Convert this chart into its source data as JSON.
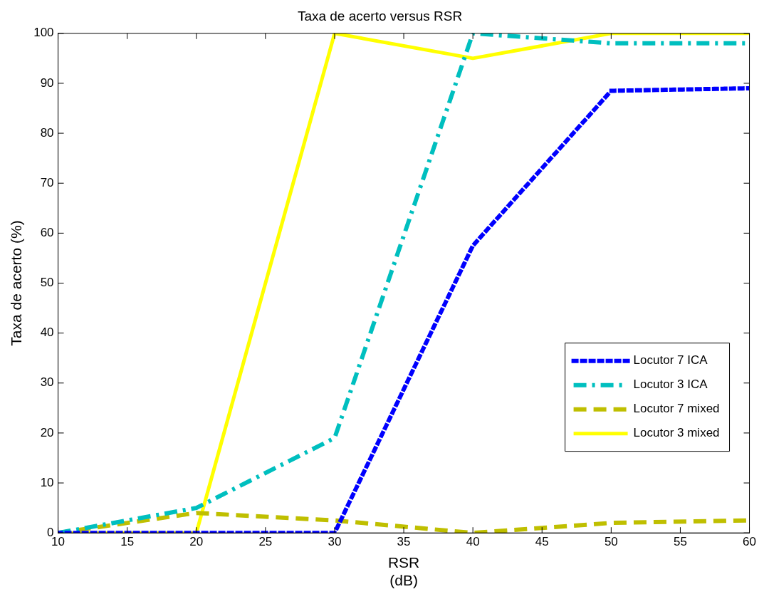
{
  "chart_data": {
    "type": "line",
    "title": "Taxa de acerto versus RSR",
    "xlabel": "RSR\n(dB)",
    "ylabel": "Taxa de acerto (%)",
    "x": [
      10,
      20,
      30,
      40,
      50,
      60
    ],
    "series": [
      {
        "name": "Locutor 7 ICA",
        "color": "#0000ff",
        "line_style": "dotted",
        "values": [
          0,
          0,
          0,
          57.5,
          88.5,
          89
        ]
      },
      {
        "name": "Locutor 3 ICA",
        "color": "#00bfbf",
        "line_style": "dashdot",
        "values": [
          0,
          5,
          19,
          100,
          98,
          98
        ]
      },
      {
        "name": "Locutor 7 mixed",
        "color": "#bfbf00",
        "line_style": "dashed",
        "values": [
          0,
          4,
          2.5,
          0,
          2,
          2.5
        ]
      },
      {
        "name": "Locutor 3 mixed",
        "color": "#ffff00",
        "line_style": "solid",
        "values": [
          0,
          0,
          100,
          95,
          100,
          100
        ]
      }
    ],
    "xlim": [
      10,
      60
    ],
    "xticks": [
      10,
      15,
      20,
      25,
      30,
      35,
      40,
      45,
      50,
      55,
      60
    ],
    "ylim": [
      0,
      100
    ],
    "yticks": [
      0,
      10,
      20,
      30,
      40,
      50,
      60,
      70,
      80,
      90,
      100
    ],
    "grid": false,
    "legend": "right",
    "marker": "none"
  }
}
